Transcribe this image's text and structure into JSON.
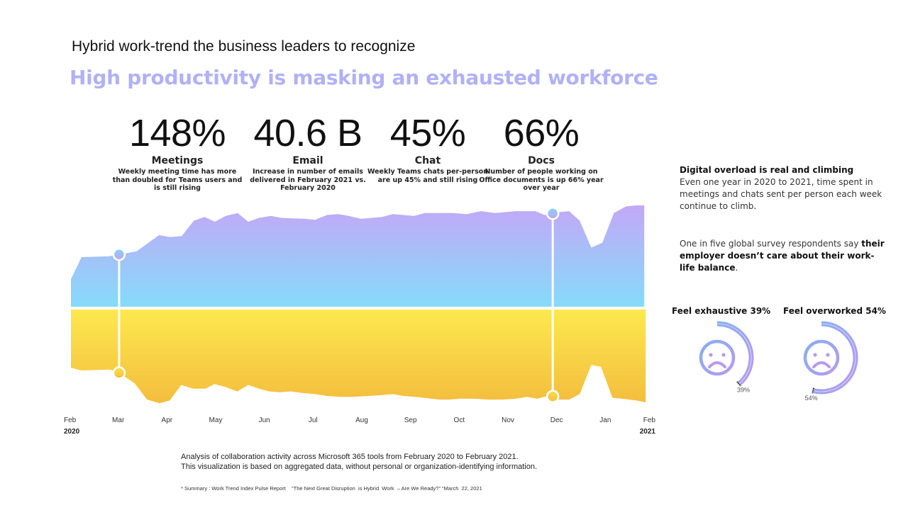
{
  "header": {
    "subtitle": "Hybrid work-trend the business leaders to recognize",
    "headline": "High productivity is masking an exhausted workforce"
  },
  "stats": [
    {
      "value": "148%",
      "label": "Meetings",
      "description": "Weekly meeting time has more than doubled for Teams users and is still rising"
    },
    {
      "value": "40.6 B",
      "label": "Email",
      "description": "Increase in number of emails delivered in February 2021 vs. February 2020"
    },
    {
      "value": "45%",
      "label": "Chat",
      "description": "Weekly Teams chats per-person are up 45% and still rising"
    },
    {
      "value": "66%",
      "label": "Docs",
      "description": "Number of people working on Office documents is up 66% year over year"
    }
  ],
  "colors": {
    "headline": "#b1b1f8",
    "upper_top": "#c3a8f7",
    "upper_bottom": "#84dcfa",
    "lower_top": "#fde94e",
    "lower_bottom": "#f4bd3e",
    "gauge_start": "#86b0f0",
    "gauge_end": "#b79af0"
  },
  "chart_data": {
    "type": "area",
    "title": "Collaboration activity across Microsoft 365, Feb 2020 – Feb 2021",
    "xlabel": "",
    "ylabel": "",
    "x_ticks": [
      "Feb",
      "Mar",
      "Apr",
      "May",
      "Jun",
      "Jul",
      "Aug",
      "Sep",
      "Oct",
      "Nov",
      "Dec",
      "Jan",
      "Feb"
    ],
    "x_years": {
      "start": "2020",
      "end": "2021"
    },
    "x_range": [
      0,
      12
    ],
    "grid": false,
    "legend": "none",
    "note": "Mirrored area chart: upper (purple-blue) area above baseline, lower (yellow) area below baseline; relative magnitudes in arbitrary units (0–100)",
    "series": [
      {
        "name": "upper-activity",
        "x": [
          0,
          0.22,
          0.8,
          1.36,
          1.83,
          2.05,
          2.3,
          2.55,
          2.77,
          2.99,
          3.21,
          3.46,
          3.68,
          3.9,
          4.15,
          4.37,
          4.85,
          5.07,
          5.32,
          5.54,
          5.77,
          6.02,
          6.46,
          6.68,
          7.12,
          7.34,
          7.93,
          8.22,
          8.51,
          8.8,
          9.24,
          9.64,
          9.83,
          9.95,
          10.12,
          10.34,
          10.56,
          10.8,
          11.03,
          11.27,
          11.52,
          11.74,
          11.9
        ],
        "values": [
          28,
          51,
          52,
          57,
          74,
          72,
          73,
          89,
          93,
          88,
          94,
          97,
          88,
          92,
          94,
          92,
          91,
          90,
          95,
          96,
          94,
          91,
          93,
          96,
          94,
          97,
          97,
          96,
          99,
          97,
          99,
          99,
          95,
          96,
          98,
          99,
          89,
          61,
          66,
          97,
          104,
          105,
          105
        ]
      },
      {
        "name": "lower-activity",
        "x": [
          0,
          0.22,
          0.8,
          0.95,
          1.32,
          1.58,
          1.84,
          2.05,
          2.29,
          2.54,
          2.79,
          2.98,
          3.2,
          3.45,
          3.68,
          3.9,
          4.12,
          4.34,
          4.56,
          4.85,
          5.07,
          5.32,
          5.58,
          5.88,
          6.17,
          6.46,
          6.68,
          6.9,
          7.12,
          7.34,
          7.64,
          7.86,
          8.08,
          8.37,
          8.66,
          8.95,
          9.24,
          9.46,
          9.68,
          9.95,
          10.12,
          10.34,
          10.56,
          10.8,
          11.0,
          11.24,
          11.44,
          11.74,
          11.93
        ],
        "values": [
          63,
          66,
          65,
          67,
          80,
          98,
          102,
          99,
          82,
          86,
          86,
          81,
          84,
          89,
          82,
          86,
          89,
          90,
          89,
          91,
          92,
          94,
          95,
          95,
          94,
          93,
          92,
          94,
          95,
          96,
          98,
          98,
          97,
          97,
          98,
          98,
          97,
          95,
          97,
          93,
          98,
          98,
          92,
          60,
          62,
          96,
          97,
          99,
          101
        ]
      }
    ],
    "highlights": [
      {
        "x": 1,
        "label": "Mar"
      },
      {
        "x": 10,
        "label": "Dec"
      }
    ]
  },
  "sidebar": {
    "overload_title": "Digital overload is real and climbing",
    "overload_text": "Even one year in 2020 to 2021, time spent in meetings and chats sent per person each week continue to climb.",
    "survey_text_plain": "One in five global survey respondents say ",
    "survey_text_bold": "their employer doesn’t care about their work-life balance",
    "survey_text_end": "."
  },
  "gauges": [
    {
      "title": "Feel exhaustive 39%",
      "percent": 39,
      "label": "39%",
      "icon": "sad-face-icon"
    },
    {
      "title": "Feel overworked 54%",
      "percent": 54,
      "label": "54%",
      "icon": "sad-face-icon"
    }
  ],
  "footer": {
    "note_line1": "Analysis of collaboration activity across Microsoft 365  tools from February 2020  to February 2021.",
    "note_line2": "This visualization is based on aggregated data, without personal or organization-identifying information.",
    "source": "* Summary : Work Trend Index Pulse Report    “The Next Great Disruption  is Hybrid  Work  – Are We Ready?” “March  22, 2021"
  }
}
